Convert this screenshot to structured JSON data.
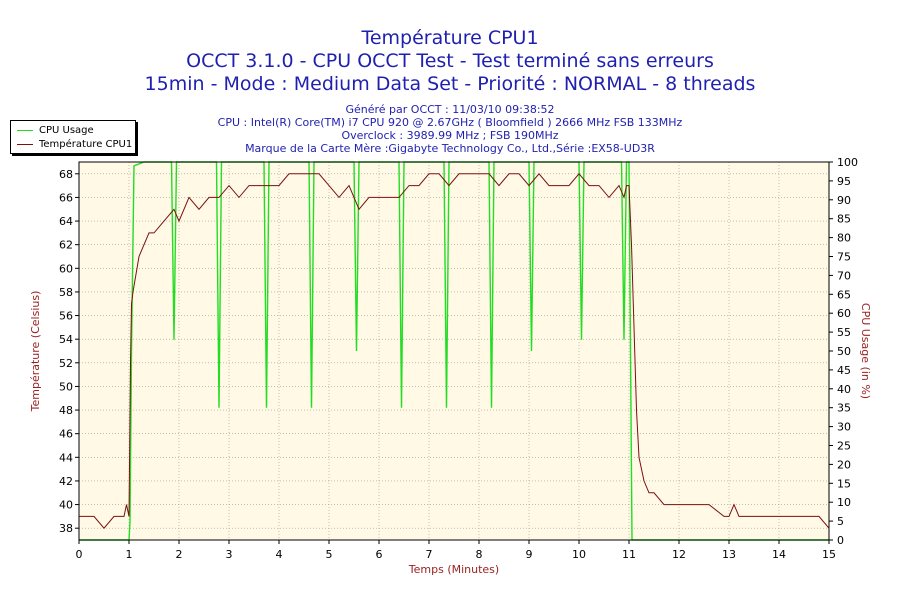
{
  "titles": {
    "line1": "Température CPU1",
    "line2": "OCCT 3.1.0 - CPU OCCT Test - Test terminé sans erreurs",
    "line3": "15min - Mode : Medium Data Set - Priorité : NORMAL - 8 threads"
  },
  "info": {
    "generated": "Généré par OCCT : 11/03/10 09:38:52",
    "cpu": "CPU : Intel(R) Core(TM) i7 CPU 920 @ 2.67GHz ( Bloomfield ) 2666 MHz FSB 133MHz",
    "overclock": "Overclock : 3989.99 MHz ; FSB 190MHz",
    "motherboard": "Marque de la Carte Mère :Gigabyte Technology Co., Ltd.,Série :EX58-UD3R"
  },
  "colors": {
    "cpu_usage": "#22dd22",
    "temperature": "#7a1010",
    "plot_bg": "#fff9e6",
    "title_text": "#1f1fb0",
    "axis_text": "#9b2222"
  },
  "chart_data": {
    "type": "line",
    "xlabel": "Temps (Minutes)",
    "ylabel_left": "Température (Celsius)",
    "ylabel_right": "CPU Usage (in %)",
    "xlim": [
      0,
      15
    ],
    "ylim_left": [
      37,
      69
    ],
    "ylim_right": [
      0,
      100
    ],
    "x_ticks": [
      0,
      1,
      2,
      3,
      4,
      5,
      6,
      7,
      8,
      9,
      10,
      11,
      12,
      13,
      14,
      15
    ],
    "y_left_ticks": [
      38,
      40,
      42,
      44,
      46,
      48,
      50,
      52,
      54,
      56,
      58,
      60,
      62,
      64,
      66,
      68
    ],
    "y_right_ticks": [
      0,
      5,
      10,
      15,
      20,
      25,
      30,
      35,
      40,
      45,
      50,
      55,
      60,
      65,
      70,
      75,
      80,
      85,
      90,
      95,
      100
    ],
    "grid": true,
    "legend_position": "top-left",
    "series": [
      {
        "name": "CPU Usage",
        "axis": "right",
        "x": [
          0,
          0.5,
          0.95,
          1.0,
          1.02,
          1.05,
          1.1,
          1.3,
          1.6,
          1.85,
          1.9,
          1.95,
          2.2,
          2.75,
          2.8,
          2.85,
          3.3,
          3.7,
          3.75,
          3.8,
          4.2,
          4.6,
          4.65,
          4.7,
          5.1,
          5.5,
          5.55,
          5.6,
          6.0,
          6.4,
          6.45,
          6.5,
          6.9,
          7.3,
          7.35,
          7.4,
          7.8,
          8.2,
          8.25,
          8.3,
          8.7,
          9.0,
          9.05,
          9.1,
          9.5,
          10.0,
          10.05,
          10.1,
          10.4,
          10.85,
          10.9,
          10.95,
          11.0,
          11.03,
          11.06,
          11.5,
          12,
          13,
          14,
          15
        ],
        "values": [
          0,
          0,
          0,
          0,
          5,
          50,
          99,
          100,
          100,
          100,
          53,
          100,
          100,
          100,
          35,
          100,
          100,
          100,
          35,
          100,
          100,
          100,
          35,
          100,
          100,
          100,
          50,
          100,
          100,
          100,
          35,
          100,
          100,
          100,
          35,
          100,
          100,
          100,
          35,
          100,
          100,
          100,
          50,
          100,
          100,
          100,
          53,
          100,
          100,
          100,
          53,
          100,
          100,
          50,
          0,
          0,
          0,
          0,
          0,
          0
        ]
      },
      {
        "name": "Température CPU1",
        "axis": "left",
        "x": [
          0,
          0.3,
          0.5,
          0.7,
          0.9,
          0.95,
          1.0,
          1.03,
          1.05,
          1.08,
          1.12,
          1.2,
          1.3,
          1.4,
          1.5,
          1.7,
          1.9,
          2.0,
          2.2,
          2.4,
          2.6,
          2.8,
          3.0,
          3.2,
          3.4,
          3.6,
          3.8,
          4.0,
          4.2,
          4.4,
          4.6,
          4.8,
          5.0,
          5.2,
          5.4,
          5.6,
          5.8,
          6.0,
          6.2,
          6.4,
          6.6,
          6.8,
          7.0,
          7.2,
          7.4,
          7.6,
          7.8,
          8.0,
          8.2,
          8.4,
          8.6,
          8.8,
          9.0,
          9.2,
          9.4,
          9.6,
          9.8,
          10.0,
          10.2,
          10.4,
          10.6,
          10.8,
          10.9,
          10.95,
          11.0,
          11.05,
          11.1,
          11.15,
          11.2,
          11.3,
          11.4,
          11.5,
          11.7,
          12.0,
          12.3,
          12.6,
          12.9,
          13.0,
          13.1,
          13.2,
          13.5,
          13.8,
          14.0,
          14.2,
          14.5,
          14.8,
          15.0
        ],
        "values": [
          39,
          39,
          38,
          39,
          39,
          40,
          39,
          52,
          57,
          58,
          59,
          61,
          62,
          63,
          63,
          64,
          65,
          64,
          66,
          65,
          66,
          66,
          67,
          66,
          67,
          67,
          67,
          67,
          68,
          68,
          68,
          68,
          67,
          66,
          67,
          65,
          66,
          66,
          66,
          66,
          67,
          67,
          68,
          68,
          67,
          68,
          68,
          68,
          68,
          67,
          68,
          68,
          67,
          68,
          67,
          67,
          67,
          68,
          67,
          67,
          66,
          67,
          66,
          67,
          67,
          62,
          55,
          48,
          44,
          42,
          41,
          41,
          40,
          40,
          40,
          40,
          39,
          39,
          40,
          39,
          39,
          39,
          39,
          39,
          39,
          39,
          38
        ]
      }
    ]
  }
}
